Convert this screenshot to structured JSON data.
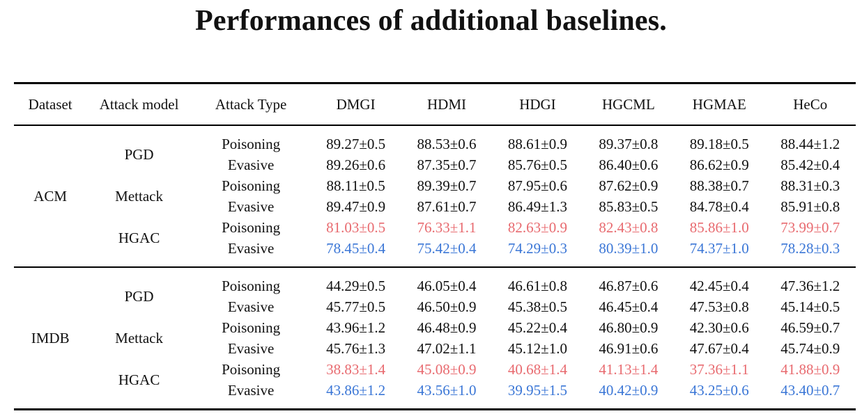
{
  "title": "Performances of additional baselines.",
  "headers": [
    "Dataset",
    "Attack model",
    "Attack Type",
    "DMGI",
    "HDMI",
    "HDGI",
    "HGCML",
    "HGMAE",
    "HeCo"
  ],
  "colors": {
    "hgac_poisoning": "#e86a6f",
    "hgac_evasive": "#3a76d6"
  },
  "datasets": [
    {
      "name": "ACM",
      "models": [
        {
          "name": "PGD",
          "rows": [
            {
              "type": "Poisoning",
              "values": [
                "89.27±0.5",
                "88.53±0.6",
                "88.61±0.9",
                "89.37±0.8",
                "89.18±0.5",
                "88.44±1.2"
              ]
            },
            {
              "type": "Evasive",
              "values": [
                "89.26±0.6",
                "87.35±0.7",
                "85.76±0.5",
                "86.40±0.6",
                "86.62±0.9",
                "85.42±0.4"
              ]
            }
          ]
        },
        {
          "name": "Mettack",
          "rows": [
            {
              "type": "Poisoning",
              "values": [
                "88.11±0.5",
                "89.39±0.7",
                "87.95±0.6",
                "87.62±0.9",
                "88.38±0.7",
                "88.31±0.3"
              ]
            },
            {
              "type": "Evasive",
              "values": [
                "89.47±0.9",
                "87.61±0.7",
                "86.49±1.3",
                "85.83±0.5",
                "84.78±0.4",
                "85.91±0.8"
              ]
            }
          ]
        },
        {
          "name": "HGAC",
          "rows": [
            {
              "type": "Poisoning",
              "values": [
                "81.03±0.5",
                "76.33±1.1",
                "82.63±0.9",
                "82.43±0.8",
                "85.86±1.0",
                "73.99±0.7"
              ]
            },
            {
              "type": "Evasive",
              "values": [
                "78.45±0.4",
                "75.42±0.4",
                "74.29±0.3",
                "80.39±1.0",
                "74.37±1.0",
                "78.28±0.3"
              ]
            }
          ]
        }
      ]
    },
    {
      "name": "IMDB",
      "models": [
        {
          "name": "PGD",
          "rows": [
            {
              "type": "Poisoning",
              "values": [
                "44.29±0.5",
                "46.05±0.4",
                "46.61±0.8",
                "46.87±0.6",
                "42.45±0.4",
                "47.36±1.2"
              ]
            },
            {
              "type": "Evasive",
              "values": [
                "45.77±0.5",
                "46.50±0.9",
                "45.38±0.5",
                "46.45±0.4",
                "47.53±0.8",
                "45.14±0.5"
              ]
            }
          ]
        },
        {
          "name": "Mettack",
          "rows": [
            {
              "type": "Poisoning",
              "values": [
                "43.96±1.2",
                "46.48±0.9",
                "45.22±0.4",
                "46.80±0.9",
                "42.30±0.6",
                "46.59±0.7"
              ]
            },
            {
              "type": "Evasive",
              "values": [
                "45.76±1.3",
                "47.02±1.1",
                "45.12±1.0",
                "46.91±0.6",
                "47.67±0.4",
                "45.74±0.9"
              ]
            }
          ]
        },
        {
          "name": "HGAC",
          "rows": [
            {
              "type": "Poisoning",
              "values": [
                "38.83±1.4",
                "45.08±0.9",
                "40.68±1.4",
                "41.13±1.4",
                "37.36±1.1",
                "41.88±0.9"
              ]
            },
            {
              "type": "Evasive",
              "values": [
                "43.86±1.2",
                "43.56±1.0",
                "39.95±1.5",
                "40.42±0.9",
                "43.25±0.6",
                "43.40±0.7"
              ]
            }
          ]
        }
      ]
    }
  ]
}
